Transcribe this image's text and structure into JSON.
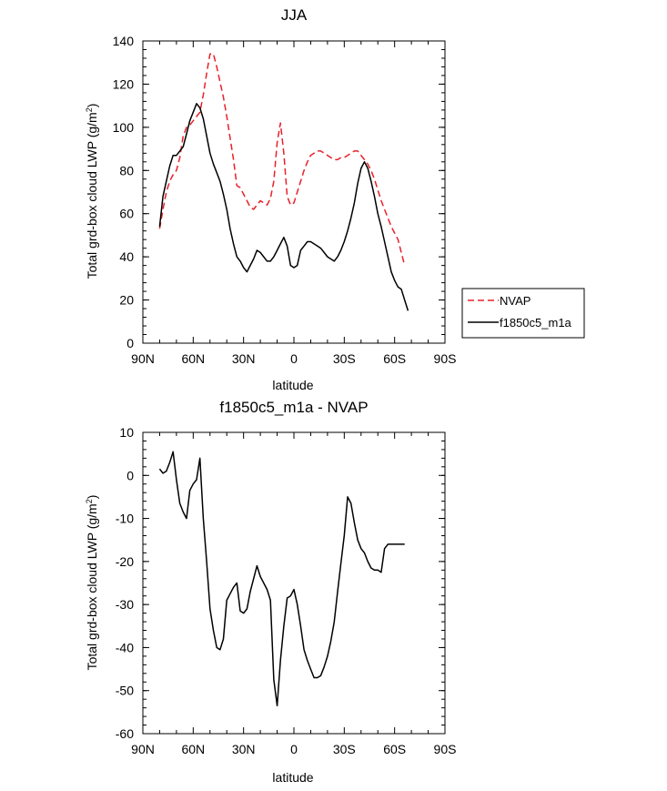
{
  "chart_data": [
    {
      "id": "top",
      "type": "line",
      "title": "JJA",
      "xlabel": "latitude",
      "ylabel": "Total grd-box cloud LWP (g/m",
      "ylabel_sup": "2",
      "ylabel_end": ")",
      "xlim": [
        90,
        -90
      ],
      "ylim": [
        0,
        140
      ],
      "xticks": [
        90,
        60,
        30,
        0,
        -30,
        -60,
        -90
      ],
      "xtick_labels": [
        "90N",
        "60N",
        "30N",
        "0",
        "30S",
        "60S",
        "90S"
      ],
      "yticks": [
        0,
        20,
        40,
        60,
        80,
        100,
        120,
        140
      ],
      "ytick_labels": [
        "0",
        "20",
        "40",
        "60",
        "80",
        "100",
        "120",
        "140"
      ],
      "legend_position": "right",
      "series": [
        {
          "name": "NVAP",
          "color": "#e8202a",
          "dash": "dashed",
          "x": [
            80,
            78,
            76,
            74,
            72,
            70,
            68,
            66,
            64,
            62,
            60,
            58,
            56,
            54,
            52,
            50,
            48,
            46,
            44,
            42,
            40,
            38,
            36,
            34,
            32,
            30,
            28,
            26,
            24,
            22,
            20,
            18,
            16,
            14,
            12,
            10,
            8,
            6,
            4,
            2,
            0,
            -2,
            -4,
            -6,
            -8,
            -10,
            -12,
            -14,
            -16,
            -18,
            -20,
            -22,
            -24,
            -26,
            -28,
            -30,
            -32,
            -34,
            -36,
            -38,
            -40,
            -42,
            -44,
            -46,
            -48,
            -50,
            -52,
            -54,
            -56,
            -58,
            -60,
            -62,
            -64,
            -66
          ],
          "y": [
            53,
            62,
            70,
            75,
            78,
            80,
            86,
            96,
            100,
            101,
            103,
            105,
            107,
            115,
            125,
            134,
            134,
            128,
            121,
            114,
            105,
            95,
            85,
            73,
            72,
            69,
            66,
            63,
            62,
            64,
            66,
            65,
            64,
            67,
            75,
            93,
            102,
            88,
            68,
            64,
            65,
            70,
            75,
            80,
            84,
            87,
            88,
            89,
            89,
            88,
            87,
            86,
            85,
            85,
            86,
            86,
            87,
            88,
            89,
            89,
            87,
            85,
            83,
            80,
            76,
            71,
            66,
            62,
            58,
            54,
            51,
            48,
            42,
            36
          ]
        },
        {
          "name": "f1850c5_m1a",
          "color": "#000000",
          "dash": "solid",
          "x": [
            80,
            78,
            76,
            74,
            72,
            70,
            68,
            66,
            64,
            62,
            60,
            58,
            56,
            54,
            52,
            50,
            48,
            46,
            44,
            42,
            40,
            38,
            36,
            34,
            32,
            30,
            28,
            26,
            24,
            22,
            20,
            18,
            16,
            14,
            12,
            10,
            8,
            6,
            4,
            2,
            0,
            -2,
            -4,
            -6,
            -8,
            -10,
            -12,
            -14,
            -16,
            -18,
            -20,
            -22,
            -24,
            -26,
            -28,
            -30,
            -32,
            -34,
            -36,
            -38,
            -40,
            -42,
            -44,
            -46,
            -48,
            -50,
            -52,
            -54,
            -56,
            -58,
            -60,
            -62,
            -64,
            -66,
            -68
          ],
          "y": [
            54,
            68,
            75,
            82,
            87,
            87,
            89,
            91,
            97,
            103,
            107,
            111,
            109,
            104,
            96,
            88,
            83,
            79,
            75,
            69,
            62,
            53,
            46,
            40,
            38,
            35,
            33,
            36,
            39,
            43,
            42,
            40,
            38,
            38,
            40,
            43,
            46,
            49,
            45,
            36,
            35,
            36,
            43,
            45,
            47,
            47,
            46,
            45,
            44,
            42,
            40,
            39,
            38,
            40,
            43,
            47,
            52,
            58,
            65,
            74,
            81,
            84,
            81,
            75,
            68,
            60,
            54,
            47,
            40,
            33,
            29,
            26,
            25,
            20,
            15
          ]
        }
      ]
    },
    {
      "id": "bottom",
      "type": "line",
      "title": "f1850c5_m1a - NVAP",
      "xlabel": "latitude",
      "ylabel": "Total grd-box cloud LWP (g/m",
      "ylabel_sup": "2",
      "ylabel_end": ")",
      "xlim": [
        90,
        -90
      ],
      "ylim": [
        -60,
        10
      ],
      "xticks": [
        90,
        60,
        30,
        0,
        -30,
        -60,
        -90
      ],
      "xtick_labels": [
        "90N",
        "60N",
        "30N",
        "0",
        "30S",
        "60S",
        "90S"
      ],
      "yticks": [
        10,
        0,
        -10,
        -20,
        -30,
        -40,
        -50,
        -60
      ],
      "ytick_labels": [
        "10",
        "0",
        "-10",
        "-20",
        "-30",
        "-40",
        "-50",
        "-60"
      ],
      "series": [
        {
          "color": "#000000",
          "dash": "solid",
          "x": [
            80,
            78,
            76,
            74,
            72,
            70,
            68,
            66,
            64,
            62,
            60,
            58,
            56,
            54,
            52,
            50,
            48,
            46,
            44,
            42,
            40,
            38,
            36,
            34,
            32,
            30,
            28,
            26,
            24,
            22,
            20,
            18,
            16,
            14,
            12,
            10,
            8,
            6,
            4,
            2,
            0,
            -2,
            -4,
            -6,
            -8,
            -10,
            -12,
            -14,
            -16,
            -18,
            -20,
            -22,
            -24,
            -26,
            -28,
            -30,
            -32,
            -34,
            -36,
            -38,
            -40,
            -42,
            -44,
            -46,
            -48,
            -50,
            -52,
            -54,
            -56,
            -58,
            -60,
            -62,
            -64,
            -66
          ],
          "y": [
            1.5,
            0.5,
            1.0,
            3.0,
            5.5,
            -1.0,
            -6.5,
            -8.5,
            -10.0,
            -3.5,
            -2.0,
            -1.0,
            4.0,
            -10.0,
            -20.0,
            -31.0,
            -36.0,
            -40.0,
            -40.5,
            -38.0,
            -29.0,
            -27.5,
            -26.0,
            -25.0,
            -31.5,
            -32.0,
            -31.0,
            -27.0,
            -24.0,
            -21.0,
            -23.5,
            -25.0,
            -26.5,
            -29.0,
            -47.5,
            -53.5,
            -43.0,
            -35.0,
            -28.5,
            -28.0,
            -26.5,
            -30.0,
            -35.0,
            -40.5,
            -43.0,
            -45.0,
            -47.0,
            -47.0,
            -46.5,
            -44.5,
            -42.0,
            -38.5,
            -34.0,
            -27.0,
            -20.5,
            -14.0,
            -5.0,
            -6.5,
            -11.0,
            -15.0,
            -17.0,
            -18.0,
            -20.0,
            -21.5,
            -22.0,
            -22.0,
            -22.5,
            -17.0,
            -16.0,
            -16.0,
            -16.0,
            -16.0,
            -16.0,
            -16.0
          ]
        }
      ]
    }
  ]
}
